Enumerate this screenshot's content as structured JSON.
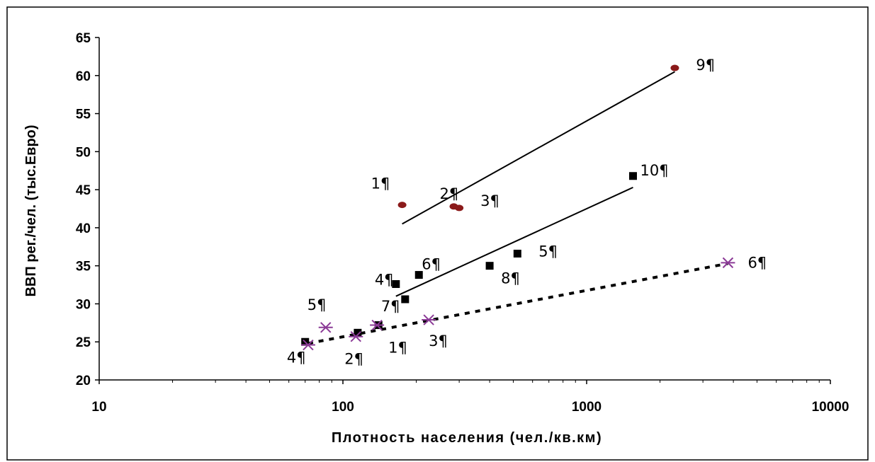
{
  "chart_data": {
    "type": "scatter",
    "xlabel": "Плотность населения (чел./кв.км)",
    "ylabel": "ВВП рег./чел. (тыс.Евро)",
    "xscale": "log",
    "xlim": [
      10,
      10000
    ],
    "ylim": [
      20,
      65
    ],
    "xticks": [
      "10",
      "100",
      "1000",
      "10000"
    ],
    "yticks": [
      "20",
      "25",
      "30",
      "35",
      "40",
      "45",
      "50",
      "55",
      "60",
      "65"
    ],
    "grid": false,
    "legend": "none",
    "series": [
      {
        "marker": "circle",
        "color": "#8b1a1a",
        "points": [
          {
            "x": 175,
            "y": 43.0,
            "label": "1¶"
          },
          {
            "x": 285,
            "y": 42.8,
            "label": "2¶"
          },
          {
            "x": 300,
            "y": 42.6,
            "label": "3¶"
          },
          {
            "x": 2300,
            "y": 61.0,
            "label": "9¶"
          }
        ],
        "trendline": {
          "style": "solid",
          "x": [
            175,
            2300
          ],
          "y": [
            40.5,
            60.5
          ]
        }
      },
      {
        "marker": "square",
        "color": "#000000",
        "points": [
          {
            "x": 70,
            "y": 25.0,
            "label": ""
          },
          {
            "x": 115,
            "y": 26.2,
            "label": ""
          },
          {
            "x": 140,
            "y": 27.2,
            "label": ""
          },
          {
            "x": 165,
            "y": 32.6,
            "label": "4¶"
          },
          {
            "x": 180,
            "y": 30.6,
            "label": "7¶"
          },
          {
            "x": 205,
            "y": 33.8,
            "label": "6¶"
          },
          {
            "x": 400,
            "y": 35.0,
            "label": "8¶"
          },
          {
            "x": 520,
            "y": 36.6,
            "label": "5¶"
          },
          {
            "x": 1550,
            "y": 46.8,
            "label": "10¶"
          }
        ],
        "trendline": {
          "style": "solid",
          "x": [
            165,
            1550
          ],
          "y": [
            31.0,
            45.3
          ]
        }
      },
      {
        "marker": "star",
        "color": "#8b3a96",
        "points": [
          {
            "x": 72,
            "y": 24.6,
            "label": "4¶"
          },
          {
            "x": 85,
            "y": 26.9,
            "label": "5¶"
          },
          {
            "x": 113,
            "y": 25.7,
            "label": "2¶"
          },
          {
            "x": 138,
            "y": 27.2,
            "label": "1¶"
          },
          {
            "x": 225,
            "y": 27.9,
            "label": "3¶"
          },
          {
            "x": 3800,
            "y": 35.4,
            "label": "6¶"
          }
        ],
        "trendline": {
          "style": "dashed",
          "x": [
            72,
            3800
          ],
          "y": [
            24.8,
            35.3
          ]
        }
      }
    ]
  }
}
